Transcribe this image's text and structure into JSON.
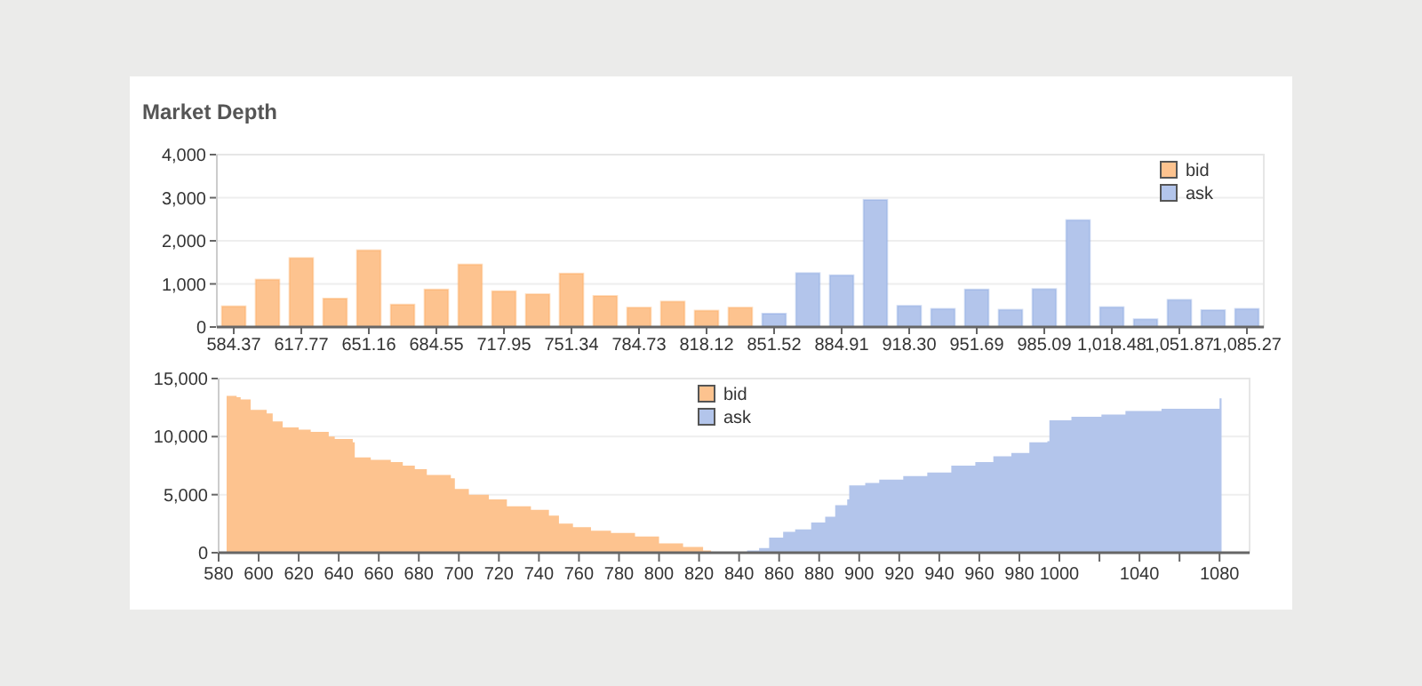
{
  "chart_data": [
    {
      "type": "bar",
      "title": "Market Depth",
      "categories": [
        "584.37",
        null,
        "617.77",
        null,
        "651.16",
        null,
        "684.55",
        null,
        "717.95",
        null,
        "751.34",
        null,
        "784.73",
        null,
        "818.12",
        null,
        "851.52",
        null,
        "884.91",
        null,
        "918.30",
        null,
        "951.69",
        null,
        "985.09",
        null,
        "1,018.48",
        null,
        "1,051.87",
        null,
        "1,085.27"
      ],
      "series": [
        {
          "name": "bid",
          "color": "#fdc38f",
          "values": [
            480,
            1100,
            1600,
            660,
            1780,
            520,
            870,
            1450,
            830,
            760,
            1240,
            720,
            450,
            590,
            380,
            450,
            null,
            null,
            null,
            null,
            null,
            null,
            null,
            null,
            null,
            null,
            null,
            null,
            null,
            null,
            null
          ]
        },
        {
          "name": "ask",
          "color": "#b3c5eb",
          "values": [
            null,
            null,
            null,
            null,
            null,
            null,
            null,
            null,
            null,
            null,
            null,
            null,
            null,
            null,
            null,
            null,
            310,
            1250,
            1200,
            2950,
            490,
            420,
            870,
            400,
            880,
            2480,
            460,
            180,
            630,
            390,
            420
          ]
        }
      ],
      "ylim": [
        0,
        4000
      ],
      "yticks": [
        0,
        {
          "value": 1000,
          "label": "1,000"
        },
        {
          "value": 2000,
          "label": "2,000"
        },
        {
          "value": 3000,
          "label": "3,000"
        },
        {
          "value": 4000,
          "label": "4,000"
        }
      ],
      "grid": "y",
      "legend": "top right"
    },
    {
      "type": "area",
      "xlim": [
        580,
        1095
      ],
      "xticks": [
        580,
        600,
        620,
        640,
        660,
        680,
        700,
        720,
        740,
        760,
        780,
        800,
        820,
        840,
        860,
        880,
        900,
        920,
        940,
        960,
        980,
        1000,
        {
          "value": 1020,
          "label": null
        },
        1040,
        {
          "value": 1060,
          "label": null
        },
        1080
      ],
      "series": [
        {
          "name": "bid",
          "color": "#fdc38f",
          "x": [
            584,
            589,
            591,
            596,
            604,
            607,
            612,
            620,
            626,
            635,
            638,
            647,
            648,
            656,
            666,
            672,
            678,
            684,
            696,
            698,
            705,
            715,
            724,
            736,
            745,
            750,
            757,
            766,
            776,
            788,
            800,
            812,
            822,
            826
          ],
          "values": [
            13500,
            13400,
            13200,
            12300,
            12000,
            11300,
            10800,
            10600,
            10400,
            10000,
            9800,
            9500,
            8200,
            8000,
            7800,
            7500,
            7200,
            6700,
            6400,
            5500,
            5000,
            4600,
            4000,
            3700,
            3200,
            2500,
            2200,
            1900,
            1700,
            1400,
            800,
            500,
            200,
            0
          ]
        },
        {
          "name": "ask",
          "color": "#b3c5eb",
          "x": [
            835,
            844,
            850,
            855,
            862,
            868,
            876,
            883,
            888,
            894,
            895,
            903,
            910,
            922,
            934,
            946,
            958,
            967,
            976,
            985,
            994,
            995,
            1006,
            1021,
            1033,
            1051,
            1080,
            1081
          ],
          "values": [
            0,
            200,
            400,
            1300,
            1800,
            2000,
            2600,
            3100,
            4100,
            4600,
            5800,
            6000,
            6300,
            6600,
            6900,
            7500,
            7800,
            8300,
            8600,
            9500,
            9600,
            11400,
            11700,
            11900,
            12200,
            12400,
            13300,
            13300
          ]
        }
      ],
      "ylim": [
        0,
        15000
      ],
      "yticks": [
        0,
        {
          "value": 5000,
          "label": "5,000"
        },
        {
          "value": 10000,
          "label": "10,000"
        },
        {
          "value": 15000,
          "label": "15,000"
        }
      ],
      "grid": "y",
      "legend": "top"
    }
  ]
}
